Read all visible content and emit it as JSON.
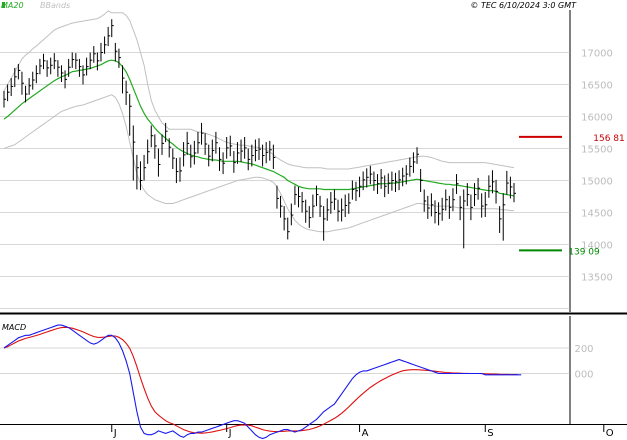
{
  "header": {
    "legend_ma": "MA20",
    "legend_bb": "BBands",
    "copyright": "© TEC 6/10/2024 3:0 GMT"
  },
  "colors": {
    "price": "#000000",
    "ma": "#22aa22",
    "bbands": "#c0c0c0",
    "grid": "#b0b0b0",
    "resistance": "#cc0000",
    "support": "#008800",
    "macd_line": "#1a1aee",
    "signal_line": "#dd1111",
    "tick_text": "#bdbdbd"
  },
  "chart_data": [
    {
      "type": "ohlc",
      "title": "",
      "y_ticks": [
        "17000",
        "16500",
        "16000",
        "15500",
        "15000",
        "14500",
        "14000",
        "13500"
      ],
      "ylim": [
        13000,
        17500
      ],
      "x_ticks": [
        "J",
        "J",
        "A",
        "S",
        "O"
      ],
      "x_tick_index": [
        30,
        62,
        99,
        134,
        167
      ],
      "resistance": {
        "value": 15681,
        "label": "156 81"
      },
      "support": {
        "value": 13909,
        "label": "139 09"
      },
      "close": [
        16270,
        16380,
        16470,
        16620,
        16720,
        16520,
        16350,
        16480,
        16570,
        16670,
        16790,
        16870,
        16760,
        16800,
        16870,
        16770,
        16680,
        16580,
        16770,
        16890,
        16880,
        16780,
        16650,
        16780,
        16880,
        16980,
        16870,
        17000,
        17120,
        17260,
        17420,
        17020,
        16920,
        16600,
        16380,
        16160,
        15600,
        15200,
        15000,
        15200,
        15450,
        15700,
        15540,
        15250,
        15580,
        15770,
        15520,
        15350,
        15140,
        15150,
        15400,
        15580,
        15370,
        15430,
        15590,
        15740,
        15570,
        15380,
        15470,
        15590,
        15330,
        15270,
        15510,
        15540,
        15280,
        15430,
        15460,
        15510,
        15330,
        15390,
        15470,
        15490,
        15390,
        15440,
        15480,
        15360,
        14720,
        14600,
        14400,
        14200,
        14460,
        14780,
        14750,
        14670,
        14520,
        14420,
        14600,
        14780,
        14600,
        14400,
        14540,
        14660,
        14710,
        14520,
        14540,
        14610,
        14650,
        14860,
        14840,
        14910,
        15010,
        15050,
        15100,
        15000,
        14950,
        15040,
        14910,
        14960,
        15000,
        14980,
        15010,
        15070,
        15100,
        15220,
        15290,
        15410,
        15000,
        14680,
        14570,
        14620,
        14500,
        14480,
        14550,
        14700,
        14580,
        14700,
        14950,
        14580,
        14680,
        14780,
        14580,
        14780,
        14880,
        14600,
        14620,
        14910,
        14980,
        14830,
        14400,
        14620,
        14960,
        14900,
        14800
      ],
      "high": [
        16400,
        16500,
        16600,
        16760,
        16820,
        16700,
        16480,
        16600,
        16700,
        16800,
        16900,
        16980,
        16880,
        16920,
        16990,
        16880,
        16800,
        16720,
        16900,
        17000,
        16990,
        16900,
        16800,
        16920,
        17000,
        17100,
        17000,
        17150,
        17250,
        17400,
        17520,
        17150,
        17060,
        16800,
        16560,
        16350,
        15860,
        15400,
        15300,
        15400,
        15640,
        15860,
        15720,
        15500,
        15720,
        15900,
        15660,
        15500,
        15350,
        15360,
        15600,
        15760,
        15560,
        15620,
        15760,
        15900,
        15740,
        15560,
        15640,
        15760,
        15520,
        15440,
        15680,
        15700,
        15460,
        15600,
        15640,
        15680,
        15500,
        15560,
        15640,
        15660,
        15560,
        15600,
        15620,
        15560,
        14920,
        14760,
        14600,
        14420,
        14640,
        14920,
        14900,
        14820,
        14700,
        14600,
        14780,
        14920,
        14760,
        14600,
        14720,
        14820,
        14860,
        14700,
        14720,
        14780,
        14800,
        15000,
        14980,
        15060,
        15140,
        15190,
        15230,
        15140,
        15100,
        15180,
        15080,
        15110,
        15140,
        15120,
        15160,
        15200,
        15240,
        15360,
        15440,
        15520,
        15180,
        14860,
        14760,
        14800,
        14690,
        14660,
        14730,
        14860,
        14760,
        14880,
        15100,
        14760,
        14860,
        14960,
        14780,
        14960,
        15040,
        14800,
        14820,
        15080,
        15160,
        15010,
        14600,
        14800,
        15150,
        15060,
        14960
      ],
      "low": [
        16140,
        16240,
        16320,
        16460,
        16580,
        16340,
        16220,
        16340,
        16420,
        16520,
        16660,
        16740,
        16620,
        16660,
        16740,
        16620,
        16540,
        16440,
        16620,
        16760,
        16740,
        16620,
        16500,
        16640,
        16740,
        16840,
        16720,
        16860,
        16980,
        17100,
        17240,
        16860,
        16760,
        16360,
        16180,
        15700,
        15000,
        14860,
        14850,
        15000,
        15260,
        15520,
        15340,
        15060,
        15400,
        15600,
        15360,
        15180,
        14960,
        14980,
        15220,
        15400,
        15200,
        15250,
        15420,
        15560,
        15400,
        15220,
        15300,
        15420,
        15150,
        15100,
        15340,
        15380,
        15120,
        15260,
        15290,
        15340,
        15160,
        15220,
        15300,
        15320,
        15220,
        15270,
        15310,
        15180,
        14560,
        14420,
        14220,
        14080,
        14300,
        14620,
        14580,
        14500,
        14340,
        14260,
        14420,
        14600,
        14430,
        14060,
        14370,
        14480,
        14540,
        14360,
        14360,
        14430,
        14480,
        14700,
        14680,
        14740,
        14850,
        14890,
        14940,
        14840,
        14790,
        14870,
        14740,
        14790,
        14840,
        14820,
        14850,
        14910,
        14940,
        15060,
        15120,
        15260,
        14820,
        14510,
        14400,
        14440,
        14330,
        14300,
        14370,
        14530,
        14400,
        14520,
        14790,
        14380,
        13940,
        14600,
        14380,
        14600,
        14700,
        14420,
        14430,
        14730,
        14800,
        14640,
        14180,
        14060,
        14780,
        14720,
        14660
      ],
      "ma20": [
        15960,
        16000,
        16050,
        16100,
        16150,
        16200,
        16240,
        16280,
        16320,
        16360,
        16400,
        16440,
        16480,
        16520,
        16560,
        16590,
        16620,
        16640,
        16670,
        16700,
        16710,
        16720,
        16730,
        16740,
        16750,
        16770,
        16790,
        16810,
        16840,
        16870,
        16880,
        16870,
        16840,
        16780,
        16700,
        16580,
        16440,
        16300,
        16160,
        16050,
        15960,
        15890,
        15820,
        15760,
        15710,
        15660,
        15610,
        15570,
        15520,
        15480,
        15450,
        15420,
        15400,
        15380,
        15370,
        15350,
        15340,
        15330,
        15320,
        15320,
        15310,
        15300,
        15300,
        15300,
        15300,
        15300,
        15290,
        15280,
        15270,
        15260,
        15240,
        15220,
        15200,
        15180,
        15160,
        15140,
        15110,
        15080,
        15050,
        15000,
        14970,
        14940,
        14910,
        14890,
        14880,
        14870,
        14870,
        14870,
        14870,
        14860,
        14860,
        14860,
        14860,
        14860,
        14860,
        14860,
        14860,
        14870,
        14880,
        14890,
        14900,
        14910,
        14920,
        14930,
        14940,
        14950,
        14950,
        14950,
        14960,
        14960,
        14970,
        14980,
        14990,
        15000,
        15010,
        15020,
        15010,
        15000,
        14990,
        14980,
        14970,
        14960,
        14950,
        14940,
        14940,
        14930,
        14930,
        14920,
        14910,
        14900,
        14890,
        14880,
        14870,
        14860,
        14850,
        14840,
        14840,
        14830,
        14800,
        14790,
        14780,
        14770,
        14760
      ],
      "bb_upper": [
        16400,
        16500,
        16600,
        16700,
        16800,
        16900,
        16960,
        17000,
        17060,
        17100,
        17150,
        17200,
        17250,
        17300,
        17350,
        17380,
        17400,
        17420,
        17440,
        17460,
        17470,
        17480,
        17490,
        17500,
        17510,
        17520,
        17530,
        17560,
        17600,
        17650,
        17620,
        17620,
        17620,
        17620,
        17580,
        17500,
        17350,
        17200,
        17000,
        16800,
        16500,
        16250,
        16100,
        16000,
        15900,
        15850,
        15800,
        15800,
        15800,
        15800,
        15800,
        15800,
        15800,
        15780,
        15760,
        15750,
        15740,
        15720,
        15700,
        15680,
        15650,
        15620,
        15600,
        15580,
        15570,
        15560,
        15550,
        15550,
        15540,
        15530,
        15520,
        15520,
        15500,
        15480,
        15450,
        15400,
        15360,
        15320,
        15290,
        15260,
        15240,
        15230,
        15220,
        15210,
        15200,
        15200,
        15200,
        15200,
        15200,
        15190,
        15180,
        15180,
        15180,
        15180,
        15180,
        15180,
        15180,
        15190,
        15200,
        15210,
        15220,
        15230,
        15240,
        15250,
        15260,
        15270,
        15280,
        15290,
        15300,
        15310,
        15320,
        15330,
        15340,
        15350,
        15360,
        15370,
        15380,
        15380,
        15370,
        15360,
        15340,
        15320,
        15300,
        15290,
        15280,
        15280,
        15280,
        15280,
        15280,
        15280,
        15280,
        15280,
        15280,
        15280,
        15280,
        15270,
        15260,
        15250,
        15240,
        15230,
        15220,
        15210,
        15200
      ],
      "bb_lower": [
        15500,
        15520,
        15540,
        15560,
        15600,
        15640,
        15680,
        15720,
        15760,
        15800,
        15840,
        15880,
        15920,
        15960,
        16000,
        16040,
        16080,
        16100,
        16120,
        16140,
        16160,
        16170,
        16180,
        16200,
        16220,
        16240,
        16260,
        16280,
        16300,
        16320,
        16340,
        16300,
        16200,
        16050,
        15850,
        15600,
        15350,
        15100,
        14950,
        14850,
        14780,
        14740,
        14700,
        14680,
        14660,
        14640,
        14640,
        14640,
        14660,
        14680,
        14700,
        14720,
        14740,
        14760,
        14780,
        14800,
        14820,
        14840,
        14860,
        14880,
        14900,
        14920,
        14940,
        14960,
        14980,
        15000,
        15010,
        15020,
        15030,
        15040,
        15050,
        15050,
        15040,
        15020,
        15000,
        14970,
        14900,
        14800,
        14680,
        14560,
        14460,
        14380,
        14320,
        14280,
        14250,
        14230,
        14220,
        14210,
        14200,
        14200,
        14200,
        14210,
        14220,
        14230,
        14240,
        14250,
        14260,
        14280,
        14300,
        14320,
        14340,
        14360,
        14380,
        14400,
        14420,
        14440,
        14460,
        14480,
        14500,
        14520,
        14540,
        14560,
        14580,
        14600,
        14620,
        14640,
        14640,
        14630,
        14620,
        14610,
        14600,
        14600,
        14600,
        14600,
        14600,
        14590,
        14580,
        14570,
        14560,
        14560,
        14560,
        14560,
        14560,
        14560,
        14560,
        14560,
        14560,
        14560,
        14550,
        14540,
        14540,
        14530,
        14530
      ]
    },
    {
      "type": "line",
      "title": "MACD",
      "y_ticks": [
        "200",
        "000"
      ],
      "ylim": [
        -600,
        350
      ],
      "macd": [
        200,
        220,
        240,
        260,
        280,
        290,
        300,
        300,
        310,
        320,
        330,
        340,
        350,
        360,
        370,
        380,
        380,
        370,
        360,
        340,
        320,
        300,
        280,
        260,
        240,
        230,
        240,
        260,
        280,
        300,
        300,
        280,
        240,
        180,
        100,
        0,
        -150,
        -300,
        -420,
        -470,
        -480,
        -480,
        -470,
        -450,
        -460,
        -470,
        -460,
        -450,
        -470,
        -490,
        -500,
        -480,
        -470,
        -470,
        -460,
        -460,
        -450,
        -440,
        -430,
        -420,
        -410,
        -400,
        -390,
        -380,
        -370,
        -370,
        -380,
        -390,
        -420,
        -450,
        -480,
        -500,
        -510,
        -500,
        -480,
        -470,
        -460,
        -450,
        -440,
        -440,
        -450,
        -460,
        -450,
        -440,
        -420,
        -400,
        -380,
        -360,
        -330,
        -300,
        -280,
        -260,
        -240,
        -200,
        -160,
        -120,
        -80,
        -40,
        -10,
        10,
        20,
        20,
        30,
        40,
        50,
        60,
        70,
        80,
        90,
        100,
        110,
        100,
        90,
        80,
        70,
        60,
        50,
        40,
        30,
        20,
        10,
        0,
        0,
        0,
        0,
        0,
        0,
        0,
        0,
        0,
        0,
        0,
        0,
        0,
        -10,
        -10,
        -10,
        -10,
        -10,
        -10,
        -10,
        -10,
        -10,
        -10,
        -10
      ],
      "signal": [
        200,
        210,
        225,
        240,
        255,
        265,
        275,
        282,
        290,
        298,
        307,
        317,
        326,
        336,
        345,
        354,
        360,
        362,
        361,
        355,
        347,
        337,
        326,
        314,
        301,
        290,
        284,
        283,
        286,
        291,
        295,
        294,
        284,
        266,
        238,
        198,
        134,
        53,
        -35,
        -117,
        -193,
        -255,
        -299,
        -326,
        -349,
        -370,
        -385,
        -395,
        -410,
        -425,
        -440,
        -450,
        -460,
        -465,
        -467,
        -468,
        -466,
        -463,
        -458,
        -452,
        -446,
        -439,
        -432,
        -424,
        -416,
        -409,
        -405,
        -403,
        -405,
        -410,
        -420,
        -430,
        -440,
        -447,
        -452,
        -455,
        -456,
        -455,
        -453,
        -451,
        -450,
        -450,
        -450,
        -448,
        -444,
        -439,
        -431,
        -422,
        -411,
        -398,
        -383,
        -368,
        -352,
        -333,
        -312,
        -288,
        -262,
        -234,
        -206,
        -180,
        -155,
        -132,
        -110,
        -90,
        -72,
        -55,
        -40,
        -26,
        -12,
        0,
        12,
        21,
        26,
        29,
        30,
        30,
        28,
        26,
        24,
        21,
        18,
        14,
        11,
        8,
        6,
        4,
        3,
        2,
        1,
        1,
        0,
        0,
        0,
        -1,
        -2,
        -3,
        -4,
        -5,
        -6,
        -7,
        -7,
        -8,
        -8,
        -9
      ]
    }
  ]
}
